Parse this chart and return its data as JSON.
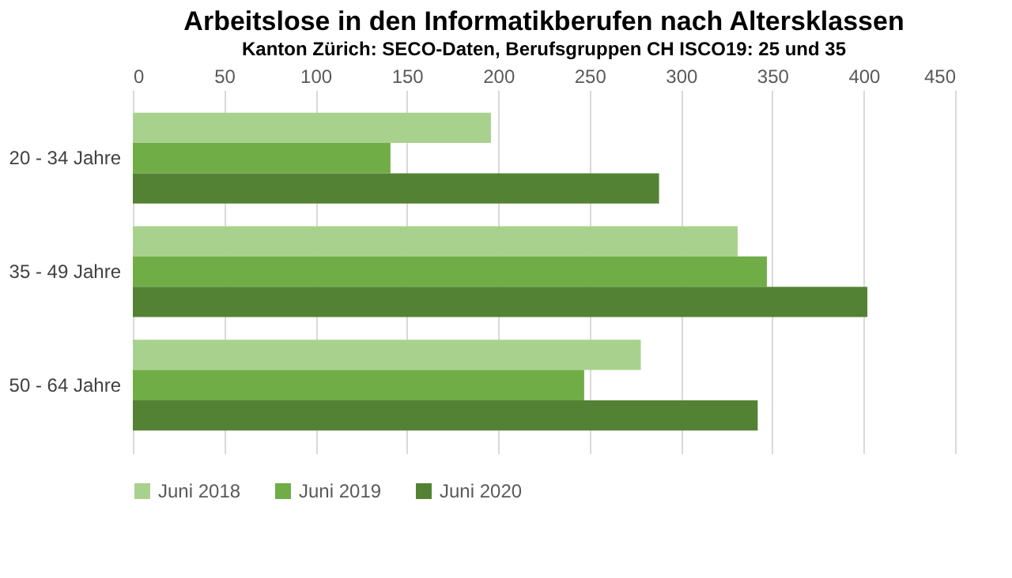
{
  "chart_data": {
    "type": "bar",
    "orientation": "horizontal",
    "title": "Arbeitslose in den Informatikberufen nach Altersklassen",
    "subtitle": "Kanton Zürich: SECO-Daten, Berufsgruppen CH ISCO19: 25 und 35",
    "categories": [
      "20 - 34 Jahre",
      "35 - 49 Jahre",
      "50 - 64 Jahre"
    ],
    "series": [
      {
        "name": "Juni 2018",
        "color": "#a9d18e",
        "values": [
          196,
          331,
          278
        ]
      },
      {
        "name": "Juni 2019",
        "color": "#70ad47",
        "values": [
          141,
          347,
          247
        ]
      },
      {
        "name": "Juni 2020",
        "color": "#548235",
        "values": [
          288,
          402,
          342
        ]
      }
    ],
    "xlim": [
      0,
      450
    ],
    "xticks": [
      0,
      50,
      100,
      150,
      200,
      250,
      300,
      350,
      400,
      450
    ],
    "grid": "x",
    "legend": "bottom"
  }
}
